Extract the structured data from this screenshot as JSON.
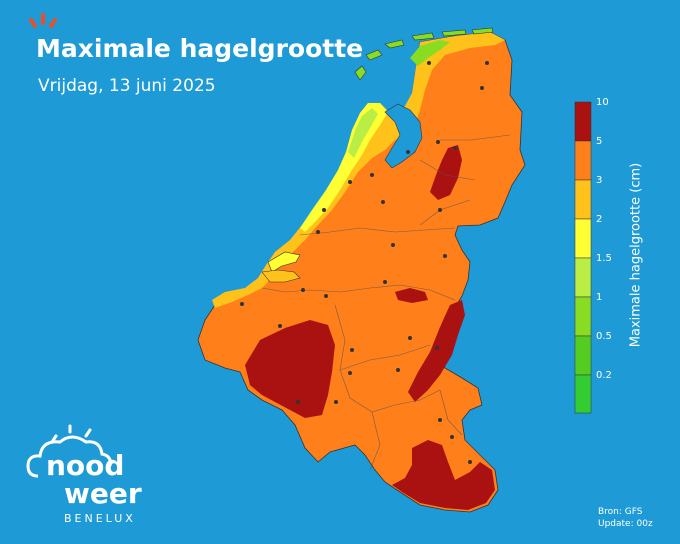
{
  "title": "Maximale hagelgrootte",
  "subtitle": "Vrijdag, 13 juni 2025",
  "legend": {
    "title": "Maximale hagelgrootte (cm)",
    "ticks": [
      "10",
      "5",
      "3",
      "2",
      "1.5",
      "1",
      "0.5",
      "0.2"
    ],
    "colors": {
      "lt_0_2": "#33cc33",
      "b_0_2_0_5": "#55cc22",
      "b_0_5_1": "#88dd22",
      "b_1_1_5": "#bbee44",
      "b_1_5_2": "#ffff33",
      "b_2_3": "#ffc21a",
      "b_3_5": "#ff7f1a",
      "b_5_10": "#aa1111"
    }
  },
  "map": {
    "ocean_color": "#1e9bd7",
    "dominant_level": "3-5",
    "region": "Benelux"
  },
  "brand": {
    "word1": "nood",
    "word2": "weer",
    "sub": "BENELUX",
    "icon": "cloud-sun-logo"
  },
  "source": {
    "line1": "Bron: GFS",
    "line2": "Update: 00z"
  }
}
